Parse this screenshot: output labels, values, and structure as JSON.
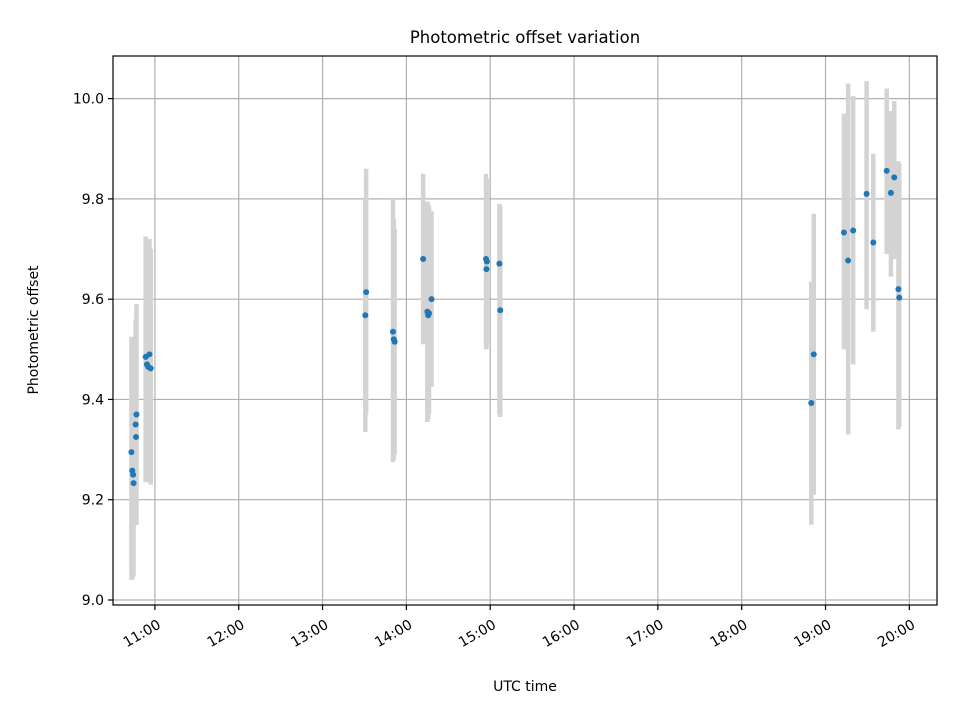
{
  "chart_data": {
    "type": "scatter",
    "title": "Photometric offset variation",
    "xlabel": "UTC time",
    "ylabel": "Photometric offset",
    "x_unit": "UTC time of day (hours)",
    "xlim": [
      10.5,
      20.33
    ],
    "ylim": [
      8.99,
      10.085
    ],
    "xticks": [
      {
        "value": 11,
        "label": "11:00"
      },
      {
        "value": 12,
        "label": "12:00"
      },
      {
        "value": 13,
        "label": "13:00"
      },
      {
        "value": 14,
        "label": "14:00"
      },
      {
        "value": 15,
        "label": "15:00"
      },
      {
        "value": 16,
        "label": "16:00"
      },
      {
        "value": 17,
        "label": "17:00"
      },
      {
        "value": 18,
        "label": "18:00"
      },
      {
        "value": 19,
        "label": "19:00"
      },
      {
        "value": 20,
        "label": "20:00"
      }
    ],
    "yticks": [
      {
        "value": 9.0,
        "label": "9.0"
      },
      {
        "value": 9.2,
        "label": "9.2"
      },
      {
        "value": 9.4,
        "label": "9.4"
      },
      {
        "value": 9.6,
        "label": "9.6"
      },
      {
        "value": 9.8,
        "label": "9.8"
      },
      {
        "value": 10.0,
        "label": "10.0"
      }
    ],
    "grid": true,
    "colors": {
      "points": "#1f77b4",
      "errorbars": "#d3d3d3",
      "grid": "#b0b0b0"
    },
    "points": [
      {
        "x": 10.72,
        "y": 9.295,
        "lo": 9.04,
        "hi": 9.525
      },
      {
        "x": 10.73,
        "y": 9.258,
        "lo": 9.04,
        "hi": 9.48
      },
      {
        "x": 10.74,
        "y": 9.25,
        "lo": 9.045,
        "hi": 9.47
      },
      {
        "x": 10.745,
        "y": 9.233,
        "lo": 9.05,
        "hi": 9.455
      },
      {
        "x": 10.78,
        "y": 9.37,
        "lo": 9.15,
        "hi": 9.59
      },
      {
        "x": 10.77,
        "y": 9.35,
        "lo": 9.15,
        "hi": 9.56
      },
      {
        "x": 10.775,
        "y": 9.325,
        "lo": 9.15,
        "hi": 9.55
      },
      {
        "x": 10.89,
        "y": 9.485,
        "lo": 9.235,
        "hi": 9.725
      },
      {
        "x": 10.905,
        "y": 9.47,
        "lo": 9.24,
        "hi": 9.715
      },
      {
        "x": 10.92,
        "y": 9.465,
        "lo": 9.235,
        "hi": 9.715
      },
      {
        "x": 10.935,
        "y": 9.49,
        "lo": 9.235,
        "hi": 9.72
      },
      {
        "x": 10.95,
        "y": 9.462,
        "lo": 9.23,
        "hi": 9.7
      },
      {
        "x": 13.52,
        "y": 9.614,
        "lo": 9.37,
        "hi": 9.86
      },
      {
        "x": 13.51,
        "y": 9.568,
        "lo": 9.335,
        "hi": 9.8
      },
      {
        "x": 13.84,
        "y": 9.535,
        "lo": 9.275,
        "hi": 9.8
      },
      {
        "x": 13.85,
        "y": 9.52,
        "lo": 9.28,
        "hi": 9.76
      },
      {
        "x": 13.86,
        "y": 9.515,
        "lo": 9.29,
        "hi": 9.74
      },
      {
        "x": 14.2,
        "y": 9.68,
        "lo": 9.51,
        "hi": 9.85
      },
      {
        "x": 14.25,
        "y": 9.575,
        "lo": 9.355,
        "hi": 9.795
      },
      {
        "x": 14.26,
        "y": 9.568,
        "lo": 9.36,
        "hi": 9.79
      },
      {
        "x": 14.27,
        "y": 9.572,
        "lo": 9.37,
        "hi": 9.785
      },
      {
        "x": 14.3,
        "y": 9.6,
        "lo": 9.425,
        "hi": 9.775
      },
      {
        "x": 14.95,
        "y": 9.68,
        "lo": 9.5,
        "hi": 9.85
      },
      {
        "x": 14.96,
        "y": 9.675,
        "lo": 9.51,
        "hi": 9.84
      },
      {
        "x": 14.955,
        "y": 9.66,
        "lo": 9.5,
        "hi": 9.82
      },
      {
        "x": 15.11,
        "y": 9.671,
        "lo": 9.37,
        "hi": 9.79
      },
      {
        "x": 15.12,
        "y": 9.578,
        "lo": 9.365,
        "hi": 9.785
      },
      {
        "x": 18.83,
        "y": 9.393,
        "lo": 9.15,
        "hi": 9.635
      },
      {
        "x": 18.86,
        "y": 9.49,
        "lo": 9.21,
        "hi": 9.77
      },
      {
        "x": 19.22,
        "y": 9.733,
        "lo": 9.5,
        "hi": 9.97
      },
      {
        "x": 19.27,
        "y": 9.677,
        "lo": 9.33,
        "hi": 10.03
      },
      {
        "x": 19.33,
        "y": 9.737,
        "lo": 9.47,
        "hi": 10.005
      },
      {
        "x": 19.49,
        "y": 9.81,
        "lo": 9.58,
        "hi": 10.035
      },
      {
        "x": 19.57,
        "y": 9.713,
        "lo": 9.535,
        "hi": 9.89
      },
      {
        "x": 19.73,
        "y": 9.856,
        "lo": 9.69,
        "hi": 10.02
      },
      {
        "x": 19.78,
        "y": 9.812,
        "lo": 9.645,
        "hi": 9.975
      },
      {
        "x": 19.82,
        "y": 9.843,
        "lo": 9.68,
        "hi": 9.995
      },
      {
        "x": 19.87,
        "y": 9.62,
        "lo": 9.34,
        "hi": 9.875
      },
      {
        "x": 19.88,
        "y": 9.603,
        "lo": 9.345,
        "hi": 9.87
      }
    ]
  }
}
